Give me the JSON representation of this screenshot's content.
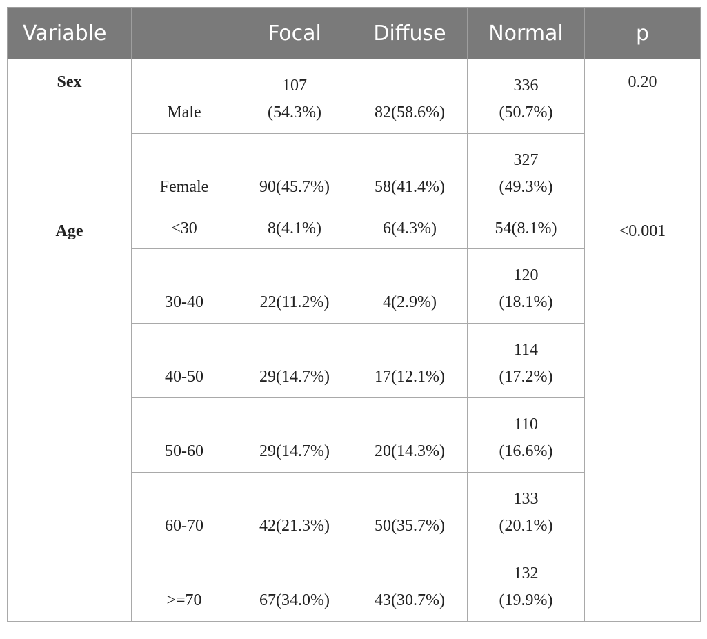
{
  "header": {
    "variable": "Variable",
    "group": "",
    "focal": "Focal",
    "diffuse": "Diffuse",
    "normal": "Normal",
    "p": "p"
  },
  "sections": [
    {
      "label": "Sex",
      "p": "0.20",
      "rows": [
        {
          "sub": "Male",
          "focal_a": "107",
          "focal_b": "(54.3%)",
          "diffuse": "82(58.6%)",
          "normal_a": "336",
          "normal_b": "(50.7%)"
        },
        {
          "sub": "Female",
          "focal": "90(45.7%)",
          "diffuse": "58(41.4%)",
          "normal_a": "327",
          "normal_b": "(49.3%)"
        }
      ]
    },
    {
      "label": "Age",
      "p": "<0.001",
      "rows": [
        {
          "sub": "<30",
          "focal": "8(4.1%)",
          "diffuse": "6(4.3%)",
          "normal": "54(8.1%)"
        },
        {
          "sub": "30-40",
          "focal": "22(11.2%)",
          "diffuse": "4(2.9%)",
          "normal_a": "120",
          "normal_b": "(18.1%)"
        },
        {
          "sub": "40-50",
          "focal": "29(14.7%)",
          "diffuse": "17(12.1%)",
          "normal_a": "114",
          "normal_b": "(17.2%)"
        },
        {
          "sub": "50-60",
          "focal": "29(14.7%)",
          "diffuse": "20(14.3%)",
          "normal_a": "110",
          "normal_b": "(16.6%)"
        },
        {
          "sub": "60-70",
          "focal": "42(21.3%)",
          "diffuse": "50(35.7%)",
          "normal_a": "133",
          "normal_b": "(20.1%)"
        },
        {
          "sub": ">=70",
          "focal": "67(34.0%)",
          "diffuse": "43(30.7%)",
          "normal_a": "132",
          "normal_b": "(19.9%)"
        }
      ]
    }
  ],
  "colors": {
    "header_bg": "#7a7a7a",
    "header_text": "#ffffff",
    "border": "#a9a9a9"
  }
}
